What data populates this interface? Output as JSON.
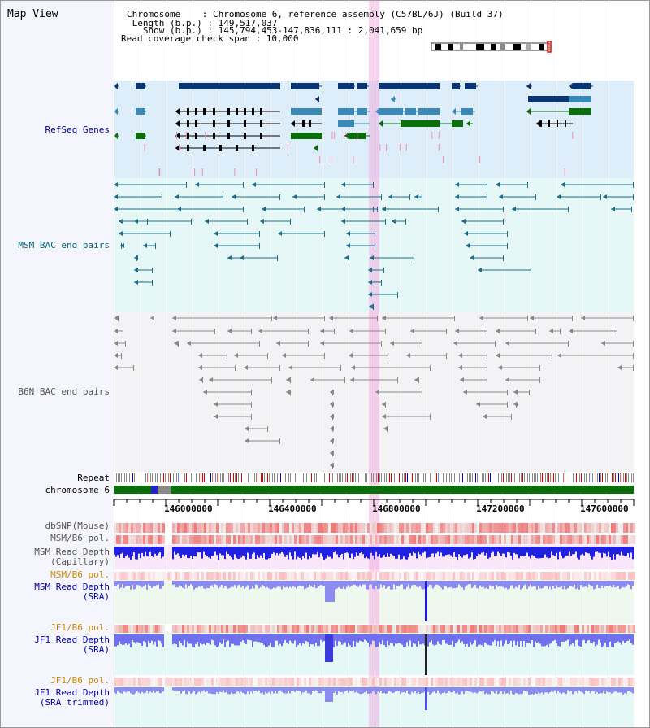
{
  "title": "Map View",
  "header": {
    "chromosome": "Chromosome    : Chromosome 6, reference assembly (C57BL/6J) (Build 37)",
    "length": " Length (b.p.) : 149,517,037",
    "show": "   Show (b.p.) : 145,794,453-147,836,111 : 2,041,659 bp",
    "coverage": "Read coverage check span : 10,000"
  },
  "tracks": {
    "refseq": "RefSeq Genes",
    "msm_bac": "MSM BAC end pairs",
    "b6n_bac": "B6N BAC end pairs",
    "repeat": "Repeat",
    "chromosome": "chromosome 6",
    "dbsnp": "dbSNP(Mouse)",
    "msm_pol": "MSM/B6 pol.",
    "msm_depth_cap_1": "MSM Read Depth",
    "msm_depth_cap_2": "(Capillary)",
    "msm_pol_sra": "MSM/B6 pol.",
    "msm_depth_sra_1": "MSM Read Depth",
    "msm_depth_sra_2": "(SRA)",
    "jf1_pol": "JF1/B6 pol.",
    "jf1_depth_1": "JF1 Read Depth",
    "jf1_depth_2": "(SRA)",
    "jf1_pol_trim": "JF1/B6 pol.",
    "jf1_trim_1": "JF1 Read Depth",
    "jf1_trim_2": "(SRA trimmed)"
  },
  "axis_ticks": [
    "146000000",
    "146400000",
    "146800000",
    "147200000",
    "147600000"
  ],
  "colors": {
    "refseq_label": "#000099",
    "msm_label": "#006677",
    "b6n_label": "#555555",
    "orange_label": "#cc8800",
    "blue_label": "#0000aa"
  }
}
